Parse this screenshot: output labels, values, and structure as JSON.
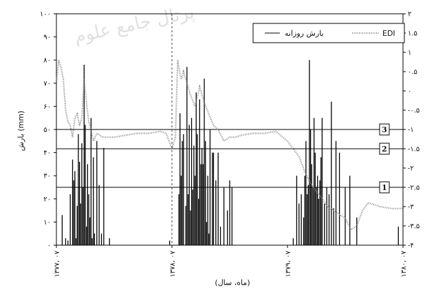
{
  "watermark": "پرتال جامع علوم",
  "chart_data": {
    "type": "bar",
    "xlabel": "(ماه، سال)",
    "ylabel": "بارش (mm)",
    "ylim": [
      0,
      100
    ],
    "y2lim": [
      -4,
      2
    ],
    "left_ticks": [
      "۰",
      "۱۰",
      "۲۰",
      "۳۰",
      "۴۰",
      "۵۰",
      "۶۰",
      "۷۰",
      "۸۰",
      "۹۰",
      "۱۰۰"
    ],
    "right_ticks": [
      "-۴",
      "-۳.۵",
      "-۳",
      "-۲.۵",
      "-۲",
      "-۱.۵",
      "-۱",
      "-۰.۵",
      "۰",
      "۰.۵",
      "۱",
      "۱.۵",
      "۲"
    ],
    "x_ticks": [
      "۱۳۷۷، ۰۷",
      "۱۳۷۸، ۰۷",
      "۱۳۷۹، ۰۷",
      "۱۳۸۰، ۰۷"
    ],
    "legend": {
      "position": "top-right",
      "daily_label": "بارش روزانه",
      "edi_label": "EDI"
    },
    "drought_thresholds": [
      {
        "label": "1",
        "edi": -2.5
      },
      {
        "label": "2",
        "edi": -1.5
      },
      {
        "label": "3",
        "edi": -1.0
      }
    ],
    "divider_at_year": 1,
    "series": [
      {
        "name": "بارش روزانه",
        "style": "bars",
        "x": [
          0.05,
          0.08,
          0.1,
          0.12,
          0.14,
          0.15,
          0.16,
          0.17,
          0.18,
          0.19,
          0.2,
          0.21,
          0.22,
          0.23,
          0.24,
          0.25,
          0.26,
          0.27,
          0.28,
          0.29,
          0.3,
          0.31,
          0.32,
          0.33,
          0.35,
          0.37,
          0.39,
          0.41,
          0.46,
          0.98,
          1.06,
          1.07,
          1.08,
          1.09,
          1.1,
          1.12,
          1.13,
          1.14,
          1.15,
          1.16,
          1.17,
          1.18,
          1.19,
          1.2,
          1.21,
          1.22,
          1.23,
          1.24,
          1.25,
          1.26,
          1.27,
          1.28,
          1.29,
          1.3,
          1.31,
          1.32,
          1.33,
          1.35,
          1.36,
          1.38,
          1.4,
          1.42,
          1.45,
          1.48,
          1.5,
          1.52,
          2.05,
          2.08,
          2.1,
          2.12,
          2.14,
          2.15,
          2.16,
          2.17,
          2.18,
          2.19,
          2.2,
          2.21,
          2.22,
          2.23,
          2.24,
          2.25,
          2.26,
          2.27,
          2.28,
          2.29,
          2.3,
          2.32,
          2.34,
          2.36,
          2.38,
          2.4,
          2.42,
          2.45,
          2.5,
          2.54,
          2.6,
          2.96
        ],
        "values": [
          13,
          3,
          2,
          22,
          37,
          28,
          32,
          3,
          17,
          48,
          36,
          18,
          44,
          25,
          78,
          52,
          8,
          35,
          22,
          12,
          55,
          3,
          38,
          5,
          45,
          26,
          5,
          42,
          3,
          2,
          22,
          57,
          30,
          45,
          48,
          17,
          77,
          22,
          52,
          15,
          55,
          24,
          43,
          30,
          66,
          48,
          20,
          63,
          35,
          42,
          35,
          72,
          45,
          10,
          30,
          5,
          50,
          40,
          40,
          28,
          40,
          8,
          25,
          15,
          28,
          25,
          3,
          30,
          18,
          22,
          12,
          30,
          45,
          22,
          26,
          80,
          50,
          35,
          25,
          55,
          40,
          25,
          30,
          20,
          28,
          38,
          55,
          18,
          25,
          22,
          62,
          16,
          45,
          40,
          25,
          30,
          12,
          8
        ]
      },
      {
        "name": "EDI",
        "style": "dotted-line",
        "x": [
          0,
          0.02,
          0.04,
          0.06,
          0.08,
          0.1,
          0.12,
          0.14,
          0.16,
          0.18,
          0.2,
          0.22,
          0.24,
          0.26,
          0.28,
          0.3,
          0.32,
          0.35,
          0.4,
          0.5,
          0.6,
          0.7,
          0.8,
          0.9,
          0.95,
          1.0,
          1.03,
          1.05,
          1.06,
          1.08,
          1.1,
          1.13,
          1.16,
          1.2,
          1.24,
          1.28,
          1.32,
          1.36,
          1.4,
          1.45,
          1.5,
          1.55,
          1.6,
          1.7,
          1.8,
          1.9,
          2.0,
          2.05,
          2.1,
          2.15,
          2.2,
          2.25,
          2.3,
          2.35,
          2.4,
          2.45,
          2.5,
          2.55,
          2.6,
          2.65,
          2.7,
          2.8,
          2.9,
          3.0
        ],
        "values": [
          0.2,
          0.8,
          0.6,
          0.3,
          -0.5,
          -0.8,
          -0.9,
          -1.2,
          -0.7,
          -0.6,
          -0.9,
          -0.7,
          0.3,
          -0.3,
          -0.8,
          -1.0,
          -1.3,
          -1.1,
          -1.2,
          -1.2,
          -1.15,
          -1.1,
          -1.1,
          -1.05,
          -1.1,
          -1.5,
          -1.2,
          0.8,
          0.6,
          0.3,
          0.5,
          0.2,
          -0.1,
          -0.4,
          0.1,
          -0.3,
          -0.6,
          -0.9,
          -1.0,
          -1.3,
          -1.2,
          -1.2,
          -1.15,
          -1.1,
          -1.1,
          -1.05,
          -1.3,
          -1.5,
          -1.7,
          -2.1,
          -2.4,
          -2.6,
          -2.8,
          -3.0,
          -3.1,
          -3.2,
          -3.3,
          -3.6,
          -3.5,
          -3.1,
          -2.9,
          -3.0,
          -3.05,
          -3.05
        ]
      }
    ]
  }
}
